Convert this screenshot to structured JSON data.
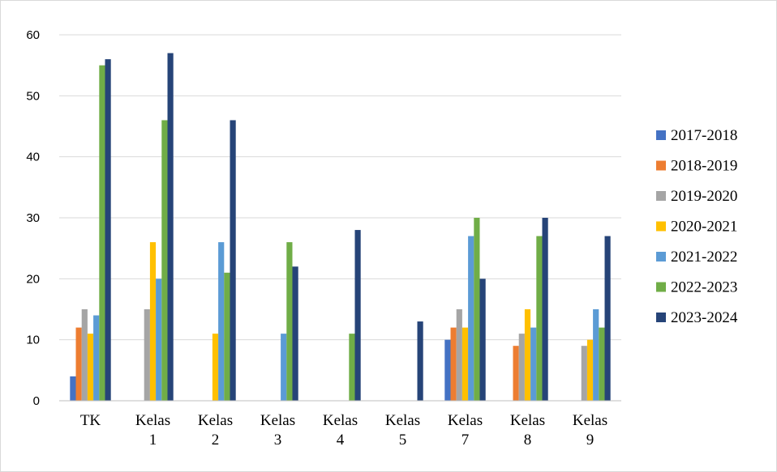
{
  "chart_data": {
    "type": "bar",
    "categories": [
      [
        "TK"
      ],
      [
        "Kelas",
        "1"
      ],
      [
        "Kelas",
        "2"
      ],
      [
        "Kelas",
        "3"
      ],
      [
        "Kelas",
        "4"
      ],
      [
        "Kelas",
        "5"
      ],
      [
        "Kelas",
        "7"
      ],
      [
        "Kelas",
        "8"
      ],
      [
        "Kelas",
        "9"
      ]
    ],
    "series": [
      {
        "name": "2017-2018",
        "color": "#4472C4",
        "values": [
          4,
          0,
          0,
          0,
          0,
          0,
          10,
          0,
          0
        ]
      },
      {
        "name": "2018-2019",
        "color": "#ED7D31",
        "values": [
          12,
          0,
          0,
          0,
          0,
          0,
          12,
          9,
          0
        ]
      },
      {
        "name": "2019-2020",
        "color": "#A5A5A5",
        "values": [
          15,
          15,
          0,
          0,
          0,
          0,
          15,
          11,
          9
        ]
      },
      {
        "name": "2020-2021",
        "color": "#FFC000",
        "values": [
          11,
          26,
          11,
          0,
          0,
          0,
          12,
          15,
          10
        ]
      },
      {
        "name": "2021-2022",
        "color": "#5B9BD5",
        "values": [
          14,
          20,
          26,
          11,
          0,
          0,
          27,
          12,
          15
        ]
      },
      {
        "name": "2022-2023",
        "color": "#70AD47",
        "values": [
          55,
          46,
          21,
          26,
          11,
          0,
          30,
          27,
          12
        ]
      },
      {
        "name": "2023-2024",
        "color": "#264478",
        "values": [
          56,
          57,
          46,
          22,
          28,
          13,
          20,
          30,
          27
        ]
      }
    ],
    "yticks": [
      "0",
      "10",
      "20",
      "30",
      "40",
      "50",
      "60"
    ],
    "ylim": [
      0,
      60
    ],
    "grid": true,
    "legend_position": "right"
  }
}
